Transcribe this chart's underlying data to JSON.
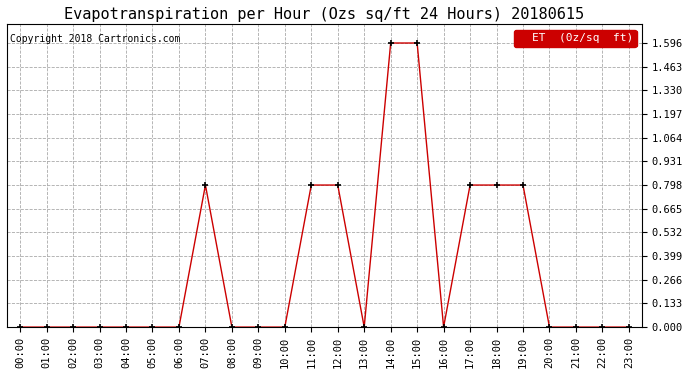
{
  "title": "Evapotranspiration per Hour (Ozs sq/ft 24 Hours) 20180615",
  "copyright": "Copyright 2018 Cartronics.com",
  "legend_label": "ET  (0z/sq  ft)",
  "background_color": "#ffffff",
  "line_color": "#cc0000",
  "marker_color": "#000000",
  "grid_color": "#aaaaaa",
  "hours": [
    "00:00",
    "01:00",
    "02:00",
    "03:00",
    "04:00",
    "05:00",
    "06:00",
    "07:00",
    "08:00",
    "09:00",
    "10:00",
    "11:00",
    "12:00",
    "13:00",
    "14:00",
    "15:00",
    "16:00",
    "17:00",
    "18:00",
    "19:00",
    "20:00",
    "21:00",
    "22:00",
    "23:00"
  ],
  "values": [
    0.0,
    0.0,
    0.0,
    0.0,
    0.0,
    0.0,
    0.0,
    0.798,
    0.0,
    0.0,
    0.0,
    0.798,
    0.798,
    0.0,
    1.596,
    1.596,
    0.0,
    0.798,
    0.798,
    0.798,
    0.0,
    0.0,
    0.0,
    0.0
  ],
  "yticks": [
    0.0,
    0.133,
    0.266,
    0.399,
    0.532,
    0.665,
    0.798,
    0.931,
    1.064,
    1.197,
    1.33,
    1.463,
    1.596
  ],
  "ylim": [
    0.0,
    1.7
  ],
  "title_fontsize": 11,
  "tick_fontsize": 7.5,
  "legend_fontsize": 8,
  "copyright_fontsize": 7
}
